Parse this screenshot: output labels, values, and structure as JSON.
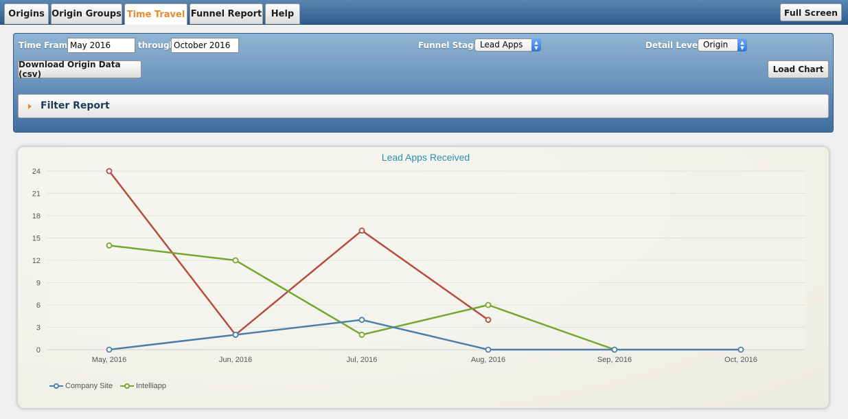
{
  "tabs": [
    {
      "label": "Origins",
      "active": false
    },
    {
      "label": "Origin Groups",
      "active": false
    },
    {
      "label": "Time Travel",
      "active": true
    },
    {
      "label": "Funnel Report",
      "active": false
    },
    {
      "label": "Help",
      "active": false
    }
  ],
  "fullscreen_label": "Full Screen",
  "controls": {
    "time_frame_label": "Time Frame",
    "time_frame_start": "May 2016",
    "through_label": "through",
    "time_frame_end": "October 2016",
    "funnel_stage_label": "Funnel Stage:",
    "funnel_stage_value": "Lead Apps",
    "detail_level_label": "Detail Level:",
    "detail_level_value": "Origin",
    "download_label": "Download Origin Data (csv)",
    "load_chart_label": "Load Chart",
    "filter_label": "Filter Report"
  },
  "colors": {
    "accent": "#e8892b",
    "company_site": "#4a7fab",
    "intelliapp": "#75a72e",
    "third_series": "#b44c3f"
  },
  "chart_data": {
    "type": "line",
    "title": "Lead Apps Received",
    "categories": [
      "May, 2016",
      "Jun, 2016",
      "Jul, 2016",
      "Aug, 2016",
      "Sep, 2016",
      "Oct, 2016"
    ],
    "ylim": [
      0,
      24
    ],
    "yticks": [
      0,
      3,
      6,
      9,
      12,
      15,
      18,
      21,
      24
    ],
    "grid": true,
    "legend_position": "bottom-left",
    "series": [
      {
        "name": "",
        "color": "#b44c3f",
        "values": [
          24,
          2,
          16,
          4,
          null,
          null
        ]
      },
      {
        "name": "Intelliapp",
        "color": "#75a72e",
        "values": [
          14,
          12,
          2,
          6,
          0,
          null
        ]
      },
      {
        "name": "Company Site",
        "color": "#4a7fab",
        "values": [
          0,
          2,
          4,
          0,
          0,
          0
        ]
      }
    ],
    "legend": [
      "Company Site",
      "Intelliapp"
    ]
  }
}
